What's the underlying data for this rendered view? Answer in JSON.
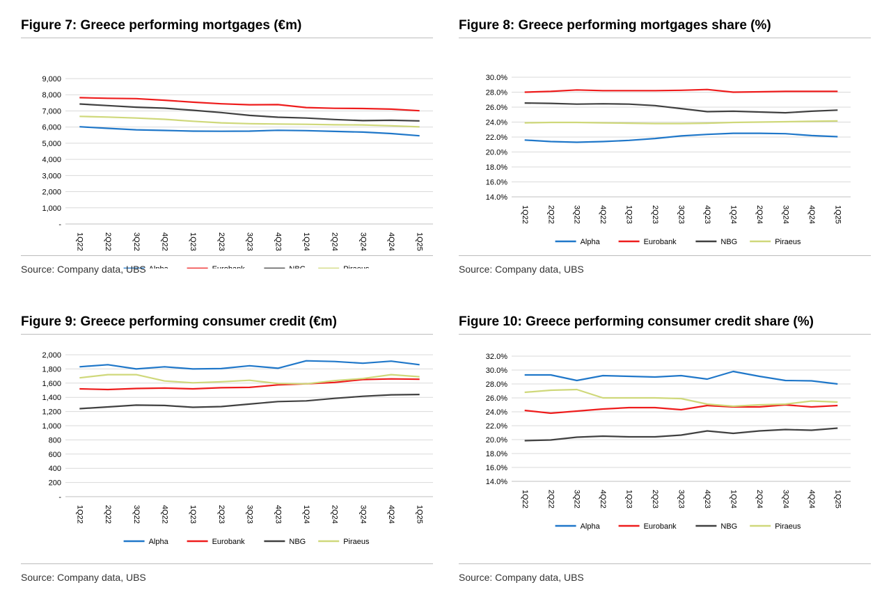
{
  "figures": [
    {
      "title": "Figure 7: Greece performing mortgages (€m)",
      "source": "Source: Company data, UBS",
      "chart_data": {
        "type": "line",
        "categories": [
          "1Q22",
          "2Q22",
          "3Q22",
          "4Q22",
          "1Q23",
          "2Q23",
          "3Q23",
          "4Q23",
          "1Q24",
          "2Q24",
          "3Q24",
          "4Q24",
          "1Q25"
        ],
        "yticks": [
          "-",
          "1,000",
          "2,000",
          "3,000",
          "4,000",
          "5,000",
          "6,000",
          "7,000",
          "8,000",
          "9,000"
        ],
        "ylim": [
          0,
          9000
        ],
        "grid": true,
        "legend_position": "bottom",
        "series": [
          {
            "name": "Alpha",
            "color": "#1f77c9",
            "values": [
              6020,
              5920,
              5830,
              5790,
              5750,
              5740,
              5750,
              5800,
              5780,
              5730,
              5690,
              5600,
              5460
            ]
          },
          {
            "name": "Eurobank",
            "color": "#ee1c1c",
            "values": [
              7820,
              7780,
              7760,
              7660,
              7540,
              7440,
              7380,
              7390,
              7210,
              7160,
              7150,
              7110,
              7010
            ]
          },
          {
            "name": "NBG",
            "color": "#404040",
            "values": [
              7430,
              7330,
              7230,
              7170,
              7040,
              6900,
              6720,
              6610,
              6560,
              6470,
              6400,
              6420,
              6380
            ]
          },
          {
            "name": "Piraeus",
            "color": "#cfd87a",
            "values": [
              6660,
              6620,
              6560,
              6480,
              6360,
              6260,
              6210,
              6190,
              6170,
              6140,
              6130,
              6080,
              6010
            ]
          }
        ]
      }
    },
    {
      "title": "Figure 8: Greece performing mortgages share (%)",
      "source": "Source: Company data, UBS",
      "chart_data": {
        "type": "line",
        "categories": [
          "1Q22",
          "2Q22",
          "3Q22",
          "4Q22",
          "1Q23",
          "2Q23",
          "3Q23",
          "4Q23",
          "1Q24",
          "2Q24",
          "3Q24",
          "4Q24",
          "1Q25"
        ],
        "yticks": [
          "14.0%",
          "16.0%",
          "18.0%",
          "20.0%",
          "22.0%",
          "24.0%",
          "26.0%",
          "28.0%",
          "30.0%"
        ],
        "ylim": [
          14,
          30
        ],
        "grid": true,
        "legend_position": "bottom",
        "series": [
          {
            "name": "Alpha",
            "color": "#1f77c9",
            "values": [
              21.6,
              21.4,
              21.3,
              21.4,
              21.55,
              21.8,
              22.15,
              22.35,
              22.5,
              22.5,
              22.45,
              22.2,
              22.05
            ]
          },
          {
            "name": "Eurobank",
            "color": "#ee1c1c",
            "values": [
              28.0,
              28.1,
              28.3,
              28.2,
              28.2,
              28.2,
              28.25,
              28.35,
              28.0,
              28.05,
              28.1,
              28.1,
              28.1
            ]
          },
          {
            "name": "NBG",
            "color": "#404040",
            "values": [
              26.55,
              26.5,
              26.4,
              26.45,
              26.4,
              26.2,
              25.8,
              25.4,
              25.45,
              25.35,
              25.25,
              25.45,
              25.6
            ]
          },
          {
            "name": "Piraeus",
            "color": "#cfd87a",
            "values": [
              23.9,
              23.95,
              23.95,
              23.9,
              23.85,
              23.8,
              23.8,
              23.85,
              23.95,
              24.0,
              24.05,
              24.1,
              24.15
            ]
          }
        ]
      }
    },
    {
      "title": "Figure 9: Greece performing consumer credit (€m)",
      "source": "Source: Company data, UBS",
      "chart_data": {
        "type": "line",
        "categories": [
          "1Q22",
          "2Q22",
          "3Q22",
          "4Q22",
          "1Q23",
          "2Q23",
          "3Q23",
          "4Q23",
          "1Q24",
          "2Q24",
          "3Q24",
          "4Q24",
          "1Q25"
        ],
        "yticks": [
          "-",
          "200",
          "400",
          "600",
          "800",
          "1,000",
          "1,200",
          "1,400",
          "1,600",
          "1,800",
          "2,000"
        ],
        "ylim": [
          0,
          2000
        ],
        "grid": true,
        "legend_position": "bottom",
        "series": [
          {
            "name": "Alpha",
            "color": "#1f77c9",
            "values": [
              1830,
              1860,
              1800,
              1830,
              1800,
              1805,
              1845,
              1810,
              1915,
              1905,
              1880,
              1910,
              1860
            ]
          },
          {
            "name": "Eurobank",
            "color": "#ee1c1c",
            "values": [
              1520,
              1510,
              1525,
              1530,
              1520,
              1535,
              1540,
              1575,
              1590,
              1610,
              1650,
              1660,
              1655
            ]
          },
          {
            "name": "NBG",
            "color": "#404040",
            "values": [
              1240,
              1265,
              1290,
              1285,
              1260,
              1270,
              1305,
              1340,
              1350,
              1385,
              1415,
              1435,
              1440
            ]
          },
          {
            "name": "Piraeus",
            "color": "#cfd87a",
            "values": [
              1675,
              1720,
              1720,
              1630,
              1605,
              1620,
              1640,
              1595,
              1590,
              1635,
              1665,
              1720,
              1690
            ]
          }
        ]
      }
    },
    {
      "title": "Figure 10: Greece performing consumer credit share (%)",
      "source": "Source: Company data, UBS",
      "chart_data": {
        "type": "line",
        "categories": [
          "1Q22",
          "2Q22",
          "3Q22",
          "4Q22",
          "1Q23",
          "2Q23",
          "3Q23",
          "4Q23",
          "1Q24",
          "2Q24",
          "3Q24",
          "4Q24",
          "1Q25"
        ],
        "yticks": [
          "14.0%",
          "16.0%",
          "18.0%",
          "20.0%",
          "22.0%",
          "24.0%",
          "26.0%",
          "28.0%",
          "30.0%",
          "32.0%"
        ],
        "ylim": [
          14,
          32
        ],
        "grid": true,
        "legend_position": "bottom",
        "series": [
          {
            "name": "Alpha",
            "color": "#1f77c9",
            "values": [
              29.3,
              29.3,
              28.5,
              29.2,
              29.1,
              29.0,
              29.2,
              28.7,
              29.8,
              29.1,
              28.5,
              28.45,
              28.0
            ]
          },
          {
            "name": "Eurobank",
            "color": "#ee1c1c",
            "values": [
              24.2,
              23.8,
              24.1,
              24.4,
              24.6,
              24.6,
              24.3,
              24.9,
              24.7,
              24.7,
              25.0,
              24.7,
              24.9
            ]
          },
          {
            "name": "NBG",
            "color": "#404040",
            "values": [
              19.85,
              19.95,
              20.35,
              20.5,
              20.4,
              20.4,
              20.65,
              21.25,
              20.9,
              21.25,
              21.45,
              21.35,
              21.65
            ]
          },
          {
            "name": "Piraeus",
            "color": "#cfd87a",
            "values": [
              26.8,
              27.1,
              27.2,
              26.0,
              26.0,
              26.0,
              25.9,
              25.1,
              24.8,
              25.0,
              25.1,
              25.55,
              25.4
            ]
          }
        ]
      }
    }
  ]
}
